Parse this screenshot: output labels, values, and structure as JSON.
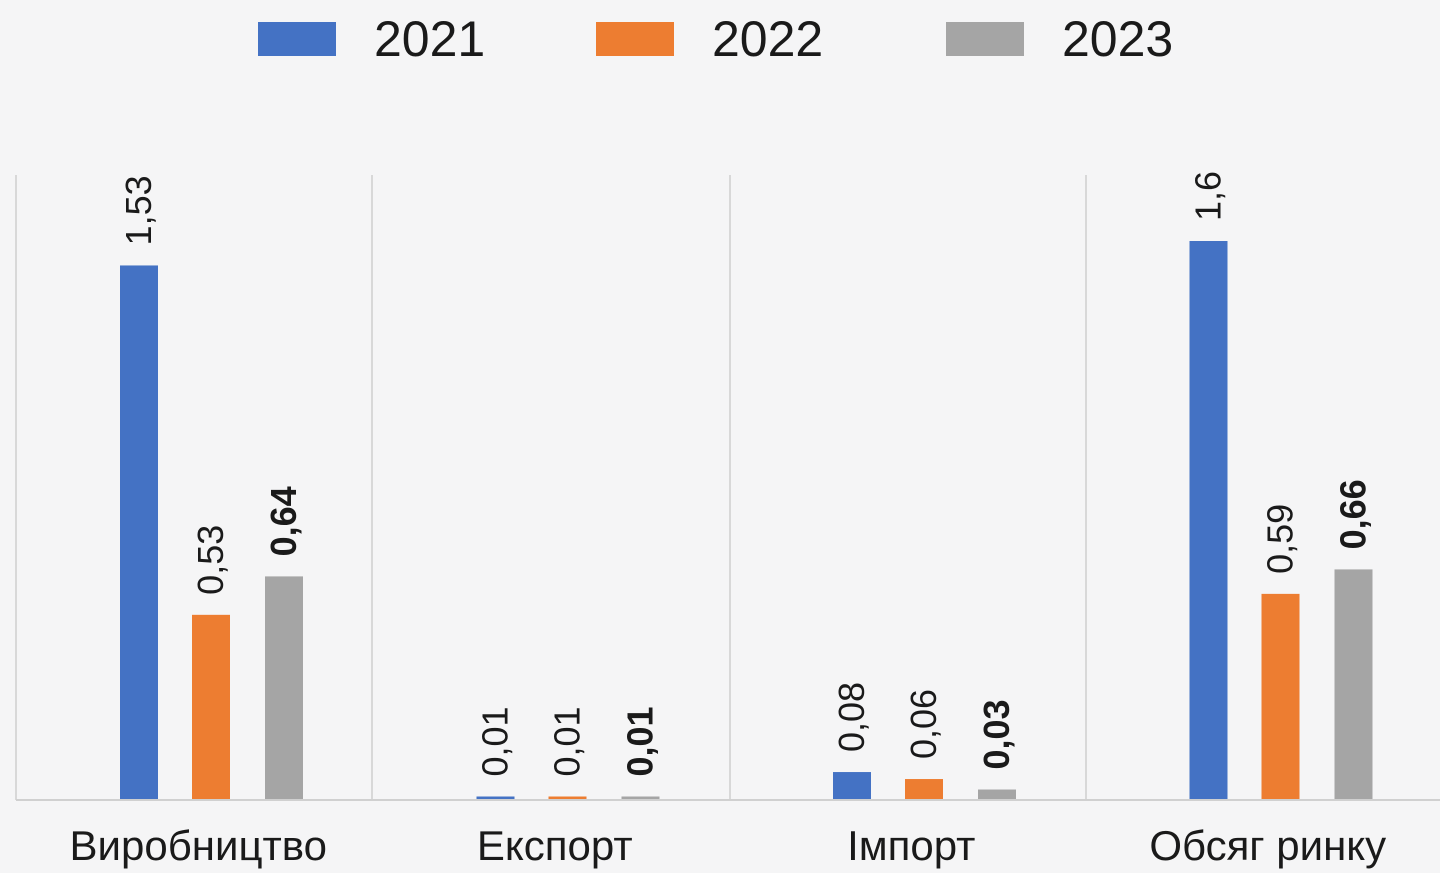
{
  "chart_data": {
    "type": "bar",
    "categories": [
      "Виробництво",
      "Експорт",
      "Імпорт",
      "Обсяг ринку"
    ],
    "series": [
      {
        "name": "2021",
        "color": "#4472c4",
        "values": [
          1.53,
          0.01,
          0.08,
          1.6
        ],
        "value_labels": [
          "1,53",
          "0,01",
          "0,08",
          "1,6"
        ]
      },
      {
        "name": "2022",
        "color": "#ed7d31",
        "values": [
          0.53,
          0.01,
          0.06,
          0.59
        ],
        "value_labels": [
          "0,53",
          "0,01",
          "0,06",
          "0,59"
        ]
      },
      {
        "name": "2023",
        "color": "#a5a5a5",
        "values": [
          0.64,
          0.01,
          0.03,
          0.66
        ],
        "value_labels": [
          "0,64",
          "0,01",
          "0,03",
          "0,66"
        ],
        "bold_labels": true
      }
    ],
    "title": "",
    "xlabel": "",
    "ylabel": "",
    "ylim": [
      0,
      1.8
    ],
    "grid": false,
    "legend": "top"
  }
}
